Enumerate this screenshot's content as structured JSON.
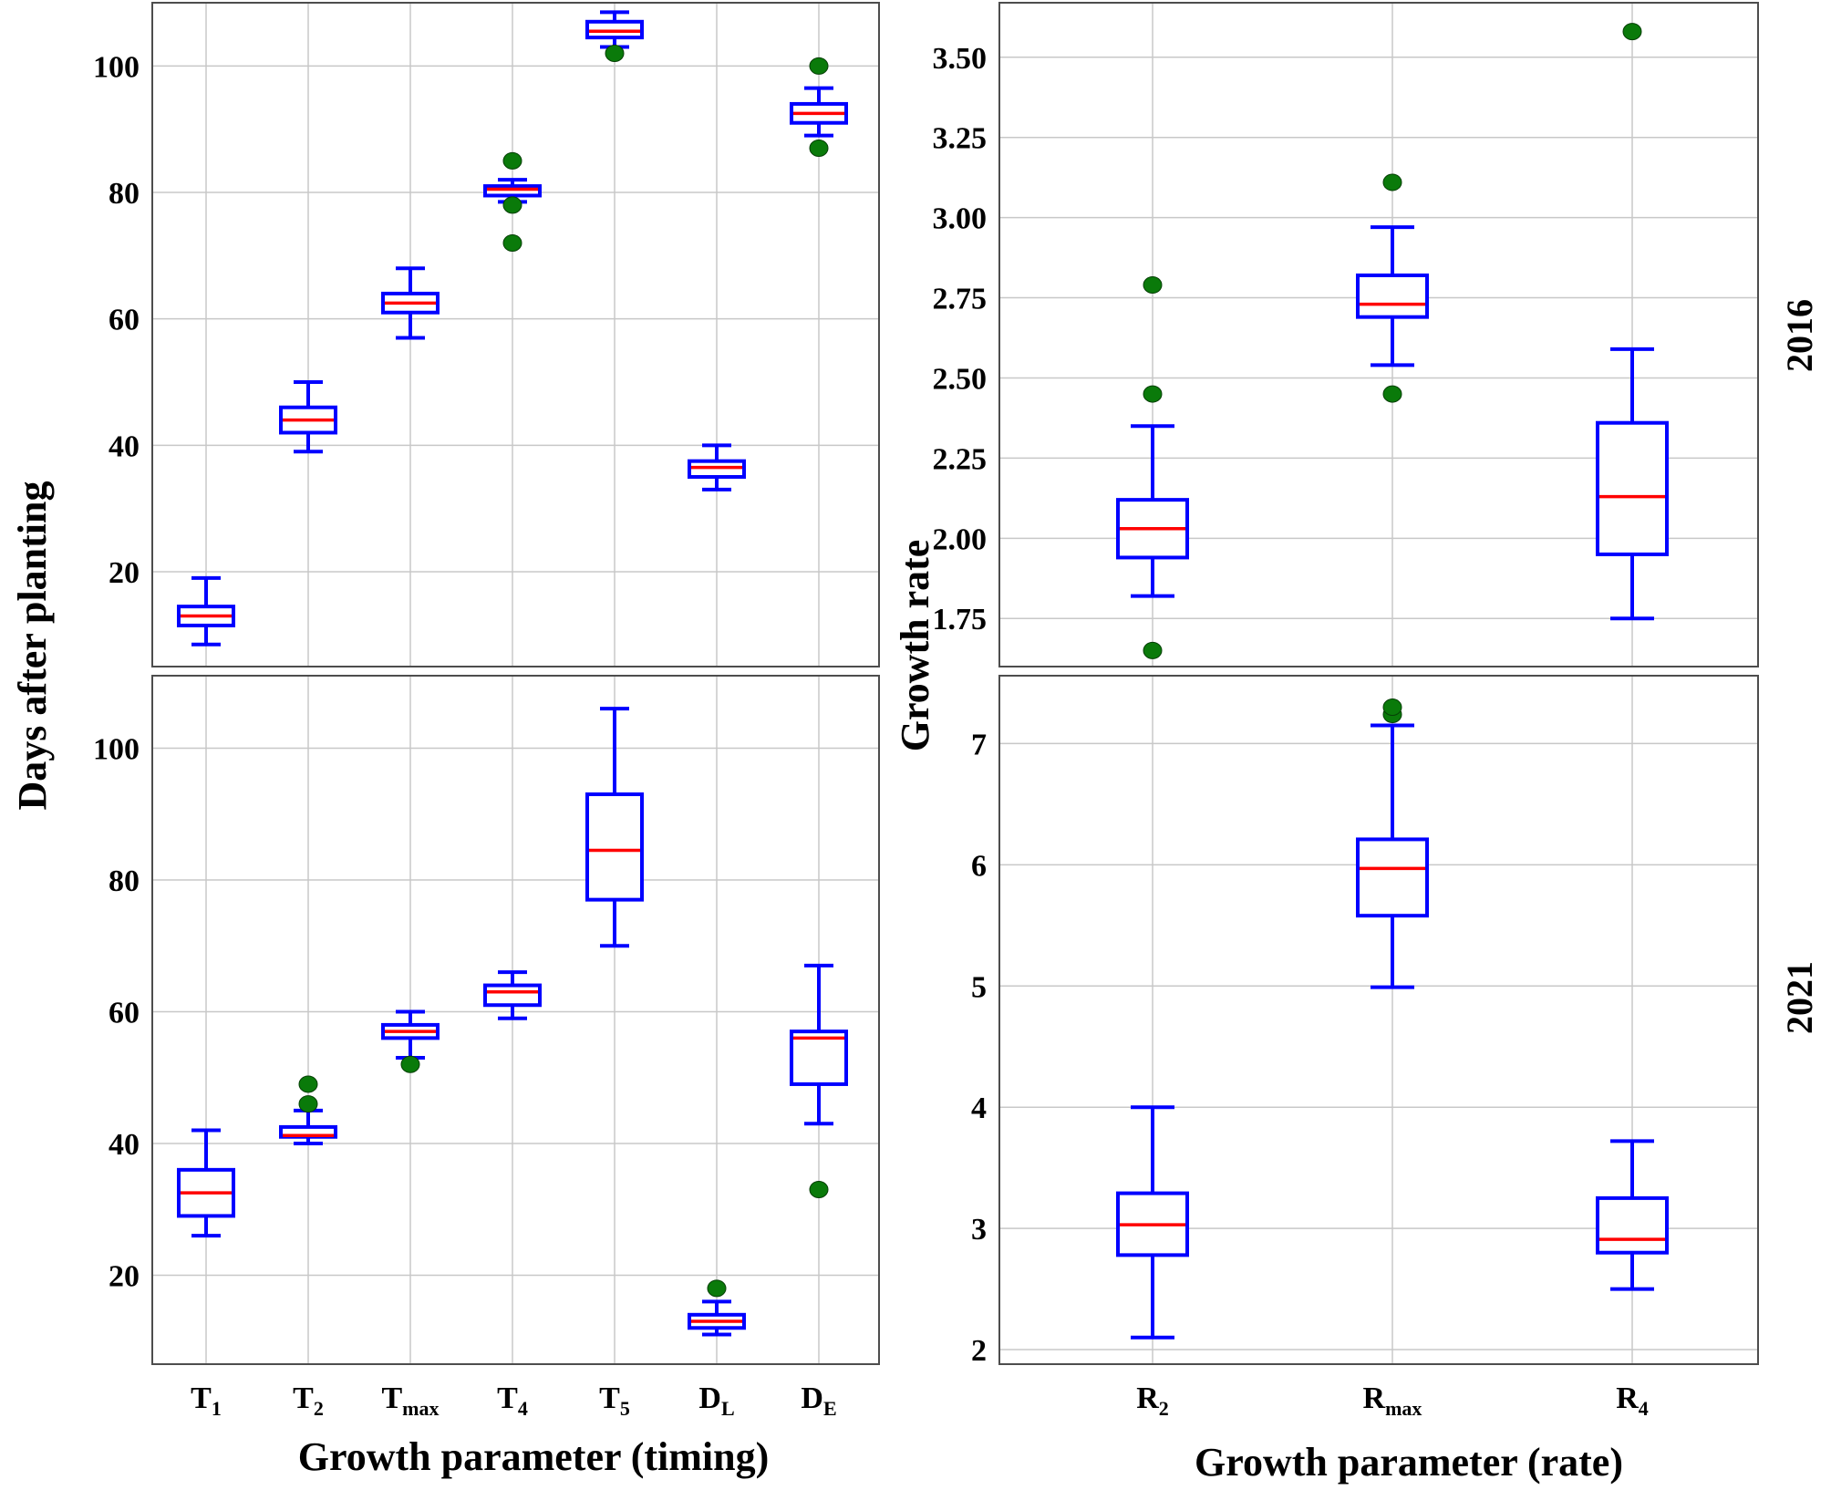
{
  "chart_data": [
    {
      "id": "timing-2016",
      "type": "box",
      "year": "2016",
      "categories": [
        {
          "main": "T",
          "sub": "1"
        },
        {
          "main": "T",
          "sub": "2"
        },
        {
          "main": "T",
          "sub": "max"
        },
        {
          "main": "T",
          "sub": "4"
        },
        {
          "main": "T",
          "sub": "5"
        },
        {
          "main": "D",
          "sub": "L"
        },
        {
          "main": "D",
          "sub": "E"
        }
      ],
      "ylim": [
        5,
        110
      ],
      "yticks": [
        20,
        40,
        60,
        80,
        100
      ],
      "yticklabels": [
        "20",
        "40",
        "60",
        "80",
        "100"
      ],
      "boxes": [
        {
          "wlo": 8.5,
          "q1": 11.5,
          "med": 13,
          "q3": 14.5,
          "whi": 19,
          "outliers": []
        },
        {
          "wlo": 39,
          "q1": 42,
          "med": 44,
          "q3": 46,
          "whi": 50,
          "outliers": []
        },
        {
          "wlo": 57,
          "q1": 61,
          "med": 62.5,
          "q3": 64,
          "whi": 68,
          "outliers": []
        },
        {
          "wlo": 78.5,
          "q1": 79.5,
          "med": 80.5,
          "q3": 81,
          "whi": 82,
          "outliers": [
            72,
            78,
            85
          ]
        },
        {
          "wlo": 103,
          "q1": 104.5,
          "med": 105.5,
          "q3": 107,
          "whi": 108.5,
          "outliers": [
            102
          ]
        },
        {
          "wlo": 33,
          "q1": 35,
          "med": 36.5,
          "q3": 37.5,
          "whi": 40,
          "outliers": []
        },
        {
          "wlo": 89,
          "q1": 91,
          "med": 92.5,
          "q3": 94,
          "whi": 96.5,
          "outliers": [
            87,
            100
          ]
        }
      ]
    },
    {
      "id": "timing-2021",
      "type": "box",
      "year": "2021",
      "categories": [
        {
          "main": "T",
          "sub": "1"
        },
        {
          "main": "T",
          "sub": "2"
        },
        {
          "main": "T",
          "sub": "max"
        },
        {
          "main": "T",
          "sub": "4"
        },
        {
          "main": "T",
          "sub": "5"
        },
        {
          "main": "D",
          "sub": "L"
        },
        {
          "main": "D",
          "sub": "E"
        }
      ],
      "ylim": [
        6.5,
        111
      ],
      "yticks": [
        20,
        40,
        60,
        80,
        100
      ],
      "yticklabels": [
        "20",
        "40",
        "60",
        "80",
        "100"
      ],
      "boxes": [
        {
          "wlo": 26,
          "q1": 29,
          "med": 32.5,
          "q3": 36,
          "whi": 42,
          "outliers": []
        },
        {
          "wlo": 40,
          "q1": 41,
          "med": 41.2,
          "q3": 42.5,
          "whi": 45,
          "outliers": [
            46,
            49
          ]
        },
        {
          "wlo": 53,
          "q1": 56,
          "med": 57,
          "q3": 58,
          "whi": 60,
          "outliers": [
            52
          ]
        },
        {
          "wlo": 59,
          "q1": 61,
          "med": 63,
          "q3": 64,
          "whi": 66,
          "outliers": []
        },
        {
          "wlo": 70,
          "q1": 77,
          "med": 84.5,
          "q3": 93,
          "whi": 106,
          "outliers": []
        },
        {
          "wlo": 11,
          "q1": 12,
          "med": 13,
          "q3": 14,
          "whi": 16,
          "outliers": [
            18
          ]
        },
        {
          "wlo": 43,
          "q1": 49,
          "med": 56,
          "q3": 57,
          "whi": 67,
          "outliers": [
            33
          ]
        }
      ]
    },
    {
      "id": "rate-2016",
      "type": "box",
      "year": "2016",
      "categories": [
        {
          "main": "R",
          "sub": "2"
        },
        {
          "main": "R",
          "sub": "max"
        },
        {
          "main": "R",
          "sub": "4"
        }
      ],
      "ylim": [
        1.6,
        3.67
      ],
      "yticks": [
        1.75,
        2.0,
        2.25,
        2.5,
        2.75,
        3.0,
        3.25,
        3.5
      ],
      "yticklabels": [
        "1.75",
        "2.00",
        "2.25",
        "2.50",
        "2.75",
        "3.00",
        "3.25",
        "3.50"
      ],
      "boxes": [
        {
          "wlo": 1.82,
          "q1": 1.94,
          "med": 2.03,
          "q3": 2.12,
          "whi": 2.35,
          "outliers": [
            1.65,
            2.45,
            2.79
          ]
        },
        {
          "wlo": 2.54,
          "q1": 2.69,
          "med": 2.73,
          "q3": 2.82,
          "whi": 2.97,
          "outliers": [
            2.45,
            3.11
          ]
        },
        {
          "wlo": 1.75,
          "q1": 1.95,
          "med": 2.13,
          "q3": 2.36,
          "whi": 2.59,
          "outliers": [
            3.58
          ]
        }
      ]
    },
    {
      "id": "rate-2021",
      "type": "box",
      "year": "2021",
      "categories": [
        {
          "main": "R",
          "sub": "2"
        },
        {
          "main": "R",
          "sub": "max"
        },
        {
          "main": "R",
          "sub": "4"
        }
      ],
      "ylim": [
        1.88,
        7.56
      ],
      "yticks": [
        2,
        3,
        4,
        5,
        6,
        7
      ],
      "yticklabels": [
        "2",
        "3",
        "4",
        "5",
        "6",
        "7"
      ],
      "boxes": [
        {
          "wlo": 2.1,
          "q1": 2.78,
          "med": 3.03,
          "q3": 3.29,
          "whi": 4.0,
          "outliers": []
        },
        {
          "wlo": 4.99,
          "q1": 5.58,
          "med": 5.97,
          "q3": 6.21,
          "whi": 7.15,
          "outliers": [
            7.24,
            7.3
          ]
        },
        {
          "wlo": 2.5,
          "q1": 2.8,
          "med": 2.91,
          "q3": 3.25,
          "whi": 3.72,
          "outliers": []
        }
      ]
    }
  ],
  "labels": {
    "ylabel_left": "Days after planting",
    "ylabel_right": "Growth rate",
    "xlabel_left": "Growth parameter (timing)",
    "xlabel_right": "Growth parameter (rate)",
    "year_top": "2016",
    "year_bottom": "2021"
  },
  "colors": {
    "box": "#0000ff",
    "median": "#ff0000",
    "outlier": "#0a7a0a",
    "grid": "#c8c8c8",
    "frame": "#4d4d4d"
  }
}
